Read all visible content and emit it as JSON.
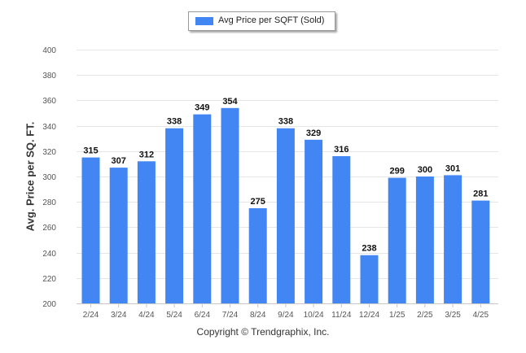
{
  "colors": {
    "bar": "#4286f4",
    "grid": "#e6e6e6",
    "axis": "#c8c8c8"
  },
  "legend": {
    "label": "Avg Price per SQFT (Sold)"
  },
  "footer": {
    "copyright": "Copyright © Trendgraphix, Inc."
  },
  "chart_data": {
    "type": "bar",
    "categories": [
      "2/24",
      "3/24",
      "4/24",
      "5/24",
      "6/24",
      "7/24",
      "8/24",
      "9/24",
      "10/24",
      "11/24",
      "12/24",
      "1/25",
      "2/25",
      "3/25",
      "4/25"
    ],
    "series": [
      {
        "name": "Avg Price per SQFT (Sold)",
        "values": [
          315,
          307,
          312,
          338,
          349,
          354,
          275,
          338,
          329,
          316,
          238,
          299,
          300,
          301,
          281
        ]
      }
    ],
    "xlabel": "",
    "ylabel": "Avg. Price per SQ. FT.",
    "ylim": [
      200,
      400
    ],
    "yticks": [
      200,
      220,
      240,
      260,
      280,
      300,
      320,
      340,
      360,
      380,
      400
    ],
    "grid": true,
    "legend_position": "top-center",
    "data_labels": true
  }
}
